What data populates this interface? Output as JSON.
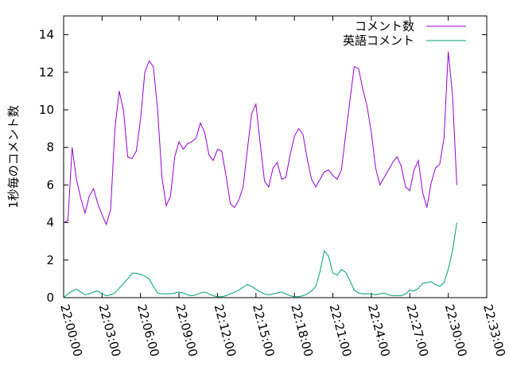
{
  "chart_data": {
    "type": "line",
    "title": "",
    "xlabel": "",
    "ylabel": "1秒毎のコメント数",
    "xlim": [
      "22:00:00",
      "22:33:00"
    ],
    "ylim": [
      0,
      15
    ],
    "yticks": [
      0,
      2,
      4,
      6,
      8,
      10,
      12,
      14
    ],
    "xticks": [
      "22:00:00",
      "22:03:00",
      "22:06:00",
      "22:09:00",
      "22:12:00",
      "22:15:00",
      "22:18:00",
      "22:21:00",
      "22:24:00",
      "22:27:00",
      "22:30:00",
      "22:33:00"
    ],
    "grid": false,
    "legend_position": "top-right",
    "colors": {
      "comments": "#9400d3",
      "english": "#009e73"
    },
    "x": [
      "22:00:00",
      "22:00:20",
      "22:00:40",
      "22:01:00",
      "22:01:20",
      "22:01:40",
      "22:02:00",
      "22:02:20",
      "22:02:40",
      "22:03:00",
      "22:03:20",
      "22:03:40",
      "22:04:00",
      "22:04:20",
      "22:04:40",
      "22:05:00",
      "22:05:20",
      "22:05:40",
      "22:06:00",
      "22:06:20",
      "22:06:40",
      "22:07:00",
      "22:07:20",
      "22:07:40",
      "22:08:00",
      "22:08:20",
      "22:08:40",
      "22:09:00",
      "22:09:20",
      "22:09:40",
      "22:10:00",
      "22:10:20",
      "22:10:40",
      "22:11:00",
      "22:11:20",
      "22:11:40",
      "22:12:00",
      "22:12:20",
      "22:12:40",
      "22:13:00",
      "22:13:20",
      "22:13:40",
      "22:14:00",
      "22:14:20",
      "22:14:40",
      "22:15:00",
      "22:15:20",
      "22:15:40",
      "22:16:00",
      "22:16:20",
      "22:16:40",
      "22:17:00",
      "22:17:20",
      "22:17:40",
      "22:18:00",
      "22:18:20",
      "22:18:40",
      "22:19:00",
      "22:19:20",
      "22:19:40",
      "22:20:00",
      "22:20:20",
      "22:20:40",
      "22:21:00",
      "22:21:20",
      "22:21:40",
      "22:22:00",
      "22:22:20",
      "22:22:40",
      "22:23:00",
      "22:23:20",
      "22:23:40",
      "22:24:00",
      "22:24:20",
      "22:24:40",
      "22:25:00",
      "22:25:20",
      "22:25:40",
      "22:26:00",
      "22:26:20",
      "22:26:40",
      "22:27:00",
      "22:27:20",
      "22:27:40",
      "22:28:00",
      "22:28:20",
      "22:28:40",
      "22:29:00",
      "22:29:20",
      "22:29:40",
      "22:30:00",
      "22:30:20",
      "22:30:40"
    ],
    "series": [
      {
        "name": "コメント数",
        "color": "#9400d3",
        "values": [
          4.0,
          4.1,
          8.0,
          6.3,
          5.3,
          4.5,
          5.4,
          5.8,
          5.0,
          4.4,
          3.9,
          4.7,
          9.0,
          11.0,
          10.0,
          7.5,
          7.4,
          7.8,
          9.5,
          12.0,
          12.6,
          12.3,
          10.0,
          6.4,
          4.9,
          5.4,
          7.5,
          8.3,
          7.9,
          8.2,
          8.3,
          8.5,
          9.3,
          8.8,
          7.6,
          7.3,
          7.9,
          7.8,
          6.5,
          5.0,
          4.8,
          5.2,
          5.9,
          7.9,
          9.8,
          10.3,
          8.2,
          6.2,
          5.9,
          6.9,
          7.2,
          6.3,
          6.4,
          7.6,
          8.6,
          9.0,
          8.7,
          7.4,
          6.3,
          5.9,
          6.3,
          6.7,
          6.8,
          6.5,
          6.3,
          6.8,
          8.7,
          10.5,
          12.3,
          12.2,
          11.1,
          10.2,
          8.8,
          6.9,
          6.0,
          6.4,
          6.8,
          7.2,
          7.5,
          7.0,
          5.9,
          5.7,
          6.8,
          7.3,
          5.6,
          4.8,
          6.1,
          6.9,
          7.1,
          8.5,
          13.1,
          10.8,
          6.0
        ]
      },
      {
        "name": "英語コメント",
        "color": "#009e73",
        "values": [
          0.0,
          0.2,
          0.35,
          0.45,
          0.3,
          0.15,
          0.2,
          0.3,
          0.35,
          0.2,
          0.1,
          0.15,
          0.25,
          0.5,
          0.75,
          1.0,
          1.3,
          1.3,
          1.25,
          1.15,
          1.0,
          0.6,
          0.25,
          0.2,
          0.2,
          0.2,
          0.25,
          0.3,
          0.25,
          0.15,
          0.1,
          0.15,
          0.25,
          0.3,
          0.2,
          0.1,
          0.05,
          0.05,
          0.1,
          0.2,
          0.3,
          0.4,
          0.55,
          0.7,
          0.6,
          0.45,
          0.3,
          0.2,
          0.15,
          0.2,
          0.25,
          0.3,
          0.2,
          0.1,
          0.05,
          0.05,
          0.1,
          0.2,
          0.35,
          0.6,
          1.4,
          2.5,
          2.2,
          1.3,
          1.2,
          1.5,
          1.35,
          0.9,
          0.4,
          0.25,
          0.2,
          0.2,
          0.2,
          0.15,
          0.2,
          0.25,
          0.15,
          0.1,
          0.1,
          0.1,
          0.2,
          0.4,
          0.35,
          0.5,
          0.75,
          0.8,
          0.85,
          0.7,
          0.6,
          0.8,
          1.5,
          2.5,
          4.0
        ]
      }
    ]
  }
}
